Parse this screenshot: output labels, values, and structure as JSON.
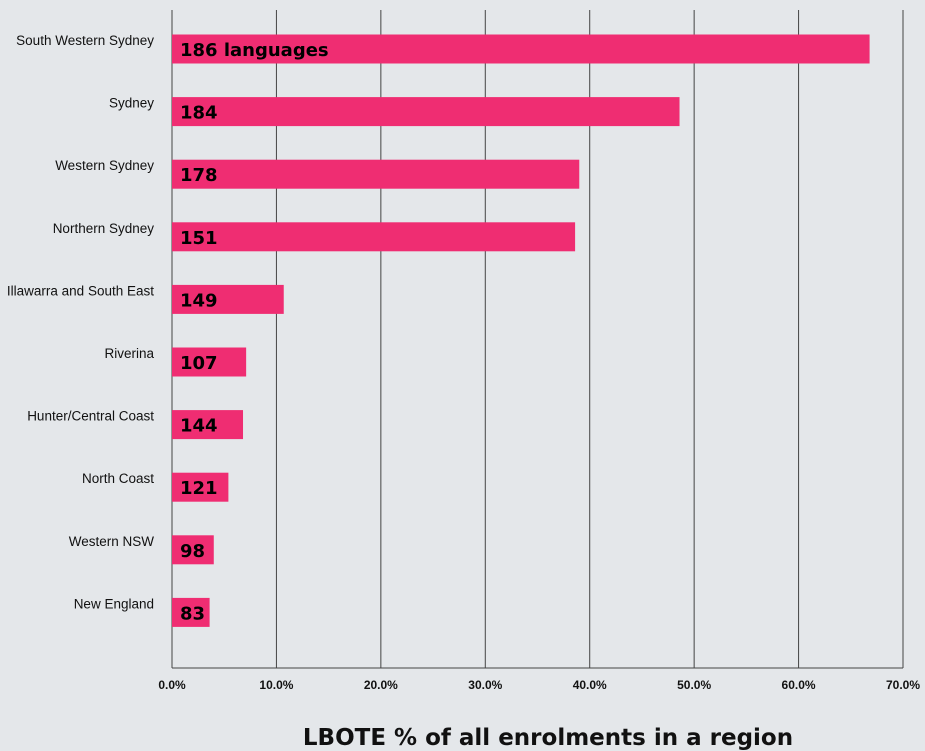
{
  "chart_data": {
    "type": "bar",
    "orientation": "horizontal",
    "xlabel": "LBOTE % of all enrolments in a region",
    "xlim": [
      0,
      70
    ],
    "xticks": [
      0,
      10,
      20,
      30,
      40,
      50,
      60,
      70
    ],
    "xtick_labels": [
      "0.0%",
      "10.0%",
      "20.0%",
      "30.0%",
      "40.0%",
      "50.0%",
      "60.0%",
      "70.0%"
    ],
    "grid": "vertical",
    "bar_color": "#ef2d72",
    "categories": [
      "South Western Sydney",
      "Sydney",
      "Western Sydney",
      "Northern Sydney",
      "Illawarra and South East",
      "Riverina",
      "Hunter/Central Coast",
      "North Coast",
      "Western NSW",
      "New England"
    ],
    "values": [
      66.8,
      48.6,
      39.0,
      38.6,
      10.7,
      7.1,
      6.8,
      5.4,
      4.0,
      3.6
    ],
    "bar_labels": [
      "186 languages",
      "184",
      "178",
      "151",
      "149",
      "107",
      "144",
      "121",
      "98",
      "83"
    ]
  }
}
